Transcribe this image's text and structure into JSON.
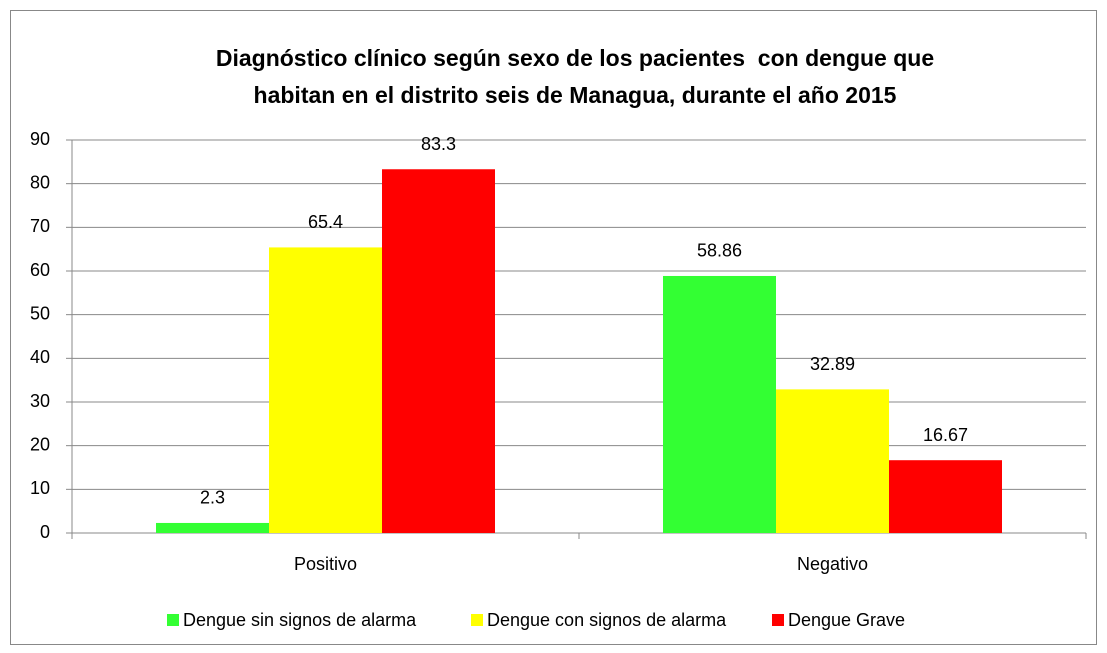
{
  "chart_data": {
    "type": "bar",
    "title": [
      "Diagnóstico clínico según sexo de los pacientes  con dengue que",
      "habitan en el distrito seis de Managua, durante el año 2015"
    ],
    "categories": [
      "Positivo",
      "Negativo"
    ],
    "series": [
      {
        "name": "Dengue sin signos de alarma",
        "color": "#33ff33",
        "values": [
          2.3,
          58.86
        ]
      },
      {
        "name": "Dengue con signos de alarma",
        "color": "#ffff00",
        "values": [
          65.4,
          32.89
        ]
      },
      {
        "name": "Dengue Grave",
        "color": "#ff0000",
        "values": [
          83.3,
          16.67
        ]
      }
    ],
    "ylim": [
      0,
      90
    ],
    "yticks": [
      0,
      10,
      20,
      30,
      40,
      50,
      60,
      70,
      80,
      90
    ],
    "grid": true,
    "legend": "bottom"
  }
}
